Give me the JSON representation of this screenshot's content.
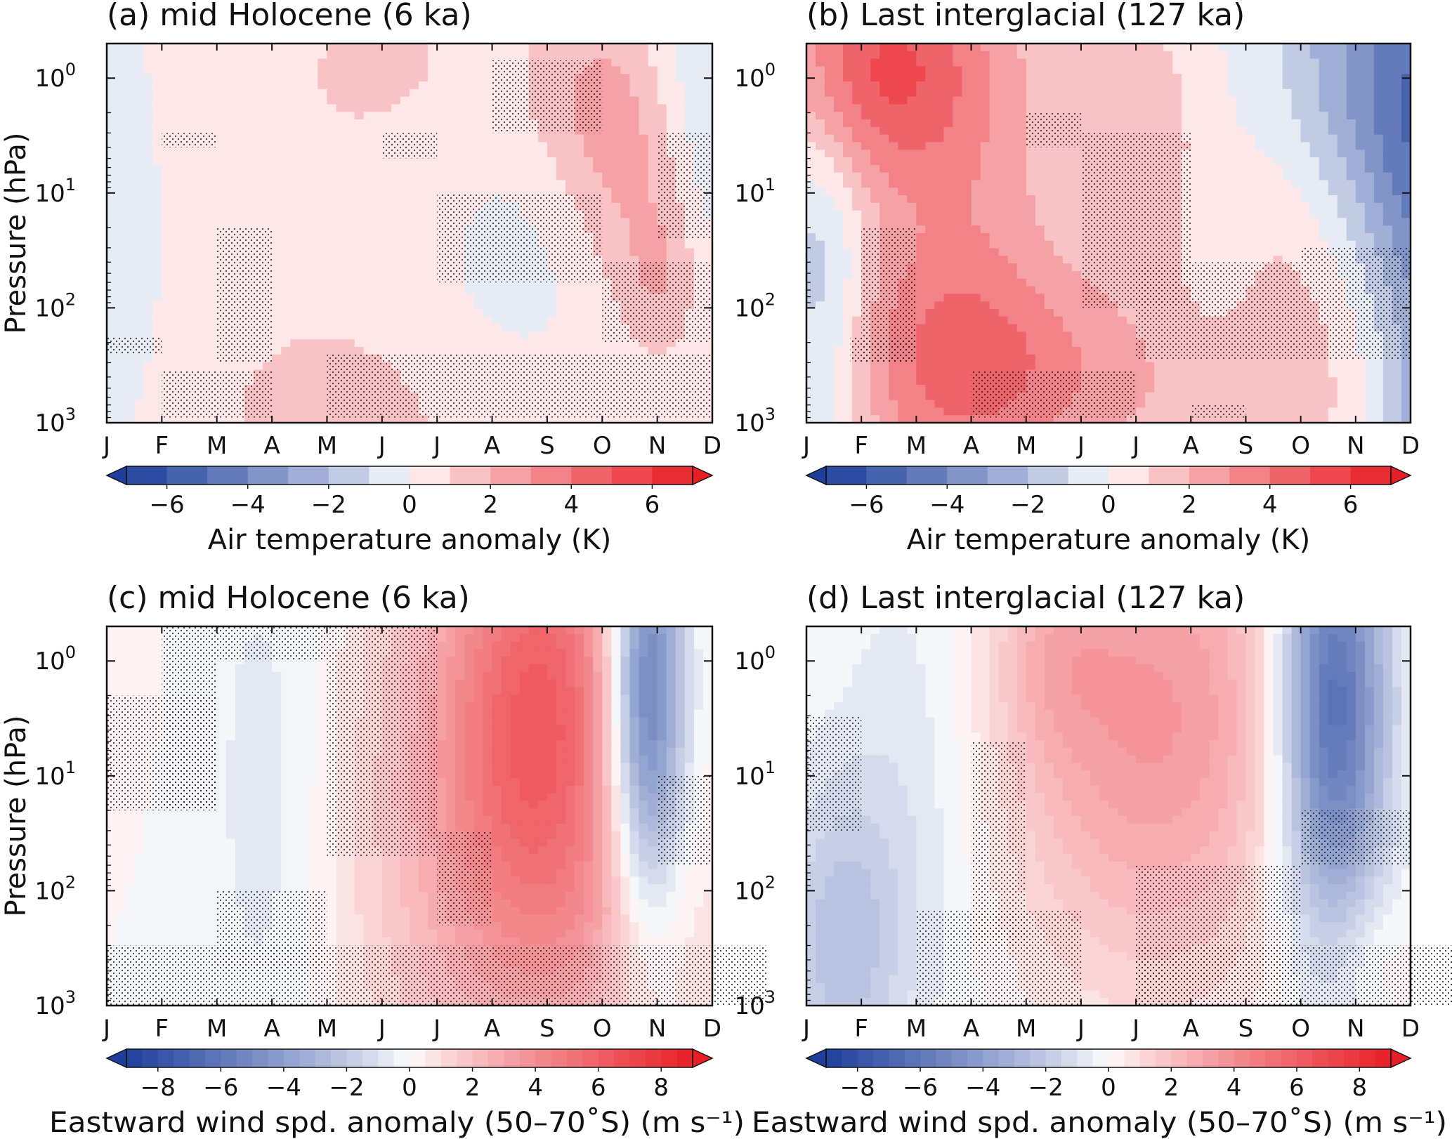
{
  "figure": {
    "colors": {
      "negative_max": "#1e3f9c",
      "zero": "#ffffff",
      "positive_max": "#e81e26"
    }
  },
  "chart_data": [
    {
      "id": "a",
      "type": "heatmap",
      "title": "(a) mid Holocene (6 ka)",
      "ylabel": "Pressure (hPa)",
      "xlabel": "",
      "x": [
        "J",
        "F",
        "M",
        "A",
        "M",
        "J",
        "J",
        "A",
        "S",
        "O",
        "N",
        "D"
      ],
      "yscale": "log",
      "yinvert": true,
      "yticks": [
        {
          "base": "10",
          "exp": "0"
        },
        {
          "base": "10",
          "exp": "1"
        },
        {
          "base": "10",
          "exp": "2"
        },
        {
          "base": "10",
          "exp": "3"
        }
      ],
      "ylim": [
        1000,
        0.5
      ],
      "clim": [
        -7,
        7
      ],
      "colorbar": {
        "label": "Air temperature anomaly (K)",
        "ticks": [
          "−6",
          "−4",
          "−2",
          "0",
          "2",
          "4",
          "6"
        ],
        "values": [
          -6,
          -4,
          -2,
          0,
          2,
          4,
          6
        ],
        "levels": 14
      },
      "blobs": [
        {
          "month": 0.3,
          "p": 30,
          "sm": 0.6,
          "sd": 1.5,
          "amp": -0.9
        },
        {
          "month": 4.5,
          "p": 20,
          "sm": 3.2,
          "sd": 3.0,
          "amp": 0.9
        },
        {
          "month": 5.5,
          "p": 0.7,
          "sm": 1.5,
          "sd": 0.5,
          "amp": 0.4
        },
        {
          "month": 8.9,
          "p": 1.5,
          "sm": 0.9,
          "sd": 0.6,
          "amp": 1.6
        },
        {
          "month": 9.7,
          "p": 10,
          "sm": 0.9,
          "sd": 0.8,
          "amp": 1.7
        },
        {
          "month": 10.1,
          "p": 60,
          "sm": 0.5,
          "sd": 0.5,
          "amp": 1.3
        },
        {
          "month": 7.3,
          "p": 40,
          "sm": 1.4,
          "sd": 1.0,
          "amp": -0.9
        },
        {
          "month": 11.0,
          "p": 2,
          "sm": 0.8,
          "sd": 1.0,
          "amp": -1.5
        },
        {
          "month": 5.0,
          "p": 800,
          "sm": 3.0,
          "sd": 0.5,
          "amp": 0.5
        }
      ],
      "stipple": [
        [
          1,
          2,
          3,
          4
        ],
        [
          5,
          6,
          3,
          5
        ],
        [
          7,
          9,
          0.7,
          3
        ],
        [
          10,
          11,
          3,
          25
        ],
        [
          2,
          3,
          20,
          300
        ],
        [
          0,
          1,
          180,
          250
        ],
        [
          6,
          9,
          10,
          60
        ],
        [
          9,
          11,
          40,
          200
        ],
        [
          1,
          3,
          350,
          900
        ],
        [
          4,
          11,
          250,
          900
        ]
      ]
    },
    {
      "id": "b",
      "type": "heatmap",
      "title": "(b) Last interglacial (127 ka)",
      "ylabel": "",
      "xlabel": "",
      "x": [
        "J",
        "F",
        "M",
        "A",
        "M",
        "J",
        "J",
        "A",
        "S",
        "O",
        "N",
        "D"
      ],
      "yscale": "log",
      "yinvert": true,
      "yticks": [
        {
          "base": "10",
          "exp": "0"
        },
        {
          "base": "10",
          "exp": "1"
        },
        {
          "base": "10",
          "exp": "2"
        },
        {
          "base": "10",
          "exp": "3"
        }
      ],
      "ylim": [
        1000,
        0.5
      ],
      "clim": [
        -7,
        7
      ],
      "colorbar": {
        "label": "Air temperature anomaly (K)",
        "ticks": [
          "−6",
          "−4",
          "−2",
          "0",
          "2",
          "4",
          "6"
        ],
        "values": [
          -6,
          -4,
          -2,
          0,
          2,
          4,
          6
        ],
        "levels": 14
      },
      "blobs": [
        {
          "month": 1.2,
          "p": 0.8,
          "sm": 1.3,
          "sd": 0.7,
          "amp": 4.0
        },
        {
          "month": 2.8,
          "p": 30,
          "sm": 1.5,
          "sd": 2.5,
          "amp": 2.5
        },
        {
          "month": 3.0,
          "p": 250,
          "sm": 2.5,
          "sd": 0.6,
          "amp": 2.0
        },
        {
          "month": 0.3,
          "p": 100,
          "sm": 0.6,
          "sd": 1.2,
          "amp": -2.5
        },
        {
          "month": 6.3,
          "p": 3,
          "sm": 0.9,
          "sd": 1.0,
          "amp": 1.5
        },
        {
          "month": 7.5,
          "p": 30,
          "sm": 0.7,
          "sd": 1.2,
          "amp": -0.9
        },
        {
          "month": 8.6,
          "p": 15,
          "sm": 1.2,
          "sd": 1.5,
          "amp": 2.0
        },
        {
          "month": 10.6,
          "p": 1,
          "sm": 1.8,
          "sd": 1.1,
          "amp": -4.2
        },
        {
          "month": 11.3,
          "p": 40,
          "sm": 0.7,
          "sd": 1.4,
          "amp": -2.5
        },
        {
          "month": 6.0,
          "p": 900,
          "sm": 3.0,
          "sd": 0.6,
          "amp": 1.0
        },
        {
          "month": 11.2,
          "p": 900,
          "sm": 0.7,
          "sd": 0.4,
          "amp": -1.2
        }
      ],
      "stipple": [
        [
          1,
          2,
          20,
          300
        ],
        [
          0.8,
          2,
          180,
          300
        ],
        [
          4,
          5,
          2,
          4
        ],
        [
          5,
          7,
          3,
          100
        ],
        [
          6,
          9,
          40,
          280
        ],
        [
          9,
          11,
          30,
          280
        ],
        [
          3,
          6,
          350,
          900
        ],
        [
          7,
          8,
          700,
          900
        ]
      ]
    },
    {
      "id": "c",
      "type": "heatmap",
      "title": "(c) mid Holocene (6 ka)",
      "ylabel": "Pressure (hPa)",
      "xlabel": "",
      "x": [
        "J",
        "F",
        "M",
        "A",
        "M",
        "J",
        "J",
        "A",
        "S",
        "O",
        "N",
        "D"
      ],
      "yscale": "log",
      "yinvert": true,
      "yticks": [
        {
          "base": "10",
          "exp": "0"
        },
        {
          "base": "10",
          "exp": "1"
        },
        {
          "base": "10",
          "exp": "2"
        },
        {
          "base": "10",
          "exp": "3"
        }
      ],
      "ylim": [
        1000,
        0.5
      ],
      "clim": [
        -9,
        9
      ],
      "colorbar": {
        "label": "Eastward wind spd. anomaly (50–70˚S) (m s⁻¹)",
        "ticks": [
          "−8",
          "−6",
          "−4",
          "−2",
          "0",
          "2",
          "4",
          "6",
          "8"
        ],
        "values": [
          -8,
          -6,
          -4,
          -2,
          0,
          2,
          4,
          6,
          8
        ],
        "levels": 36
      },
      "blobs": [
        {
          "month": 8.0,
          "p": 3,
          "sm": 1.3,
          "sd": 1.6,
          "amp": 5.0
        },
        {
          "month": 6.5,
          "p": 30,
          "sm": 1.8,
          "sd": 2.2,
          "amp": 2.0
        },
        {
          "month": 9.8,
          "p": 2,
          "sm": 0.5,
          "sd": 1.3,
          "amp": -7.0
        },
        {
          "month": 3.0,
          "p": 15,
          "sm": 0.9,
          "sd": 2.0,
          "amp": -0.9
        },
        {
          "month": 0.2,
          "p": 1,
          "sm": 0.4,
          "sd": 0.7,
          "amp": 0.4
        },
        {
          "month": 9.5,
          "p": 300,
          "sm": 1.4,
          "sd": 0.7,
          "amp": 0.8
        }
      ],
      "stipple": [
        [
          1,
          2,
          0.5,
          20
        ],
        [
          2,
          4,
          0.5,
          1
        ],
        [
          0,
          2,
          2,
          20
        ],
        [
          4,
          6,
          0.5,
          50
        ],
        [
          6,
          7,
          30,
          200
        ],
        [
          2,
          4,
          100,
          500
        ],
        [
          0,
          12,
          300,
          1000
        ],
        [
          10,
          11,
          10,
          60
        ]
      ]
    },
    {
      "id": "d",
      "type": "heatmap",
      "title": "(d) Last interglacial (127 ka)",
      "ylabel": "",
      "xlabel": "",
      "x": [
        "J",
        "F",
        "M",
        "A",
        "M",
        "J",
        "J",
        "A",
        "S",
        "O",
        "N",
        "D"
      ],
      "yscale": "log",
      "yinvert": true,
      "yticks": [
        {
          "base": "10",
          "exp": "0"
        },
        {
          "base": "10",
          "exp": "1"
        },
        {
          "base": "10",
          "exp": "2"
        },
        {
          "base": "10",
          "exp": "3"
        }
      ],
      "ylim": [
        1000,
        0.5
      ],
      "clim": [
        -9,
        9
      ],
      "colorbar": {
        "label": "Eastward wind spd. anomaly (50–70˚S) (m s⁻¹)",
        "ticks": [
          "−8",
          "−6",
          "−4",
          "−2",
          "0",
          "2",
          "4",
          "6",
          "8"
        ],
        "values": [
          -8,
          -6,
          -4,
          -2,
          0,
          2,
          4,
          6,
          8
        ],
        "levels": 36
      },
      "blobs": [
        {
          "month": 6.3,
          "p": 3,
          "sm": 2.0,
          "sd": 1.6,
          "amp": 3.6
        },
        {
          "month": 4.5,
          "p": 0.9,
          "sm": 0.7,
          "sd": 0.6,
          "amp": 1.0
        },
        {
          "month": 9.6,
          "p": 2.5,
          "sm": 0.7,
          "sd": 1.4,
          "amp": -7.0
        },
        {
          "month": 0.6,
          "p": 300,
          "sm": 0.8,
          "sd": 1.0,
          "amp": -2.2
        },
        {
          "month": 2.0,
          "p": 10,
          "sm": 1.0,
          "sd": 1.8,
          "amp": -1.0
        },
        {
          "month": 11.9,
          "p": 1,
          "sm": 0.3,
          "sd": 0.8,
          "amp": 1.6
        },
        {
          "month": 10.2,
          "p": 350,
          "sm": 0.5,
          "sd": 0.4,
          "amp": 0.8
        }
      ],
      "stipple": [
        [
          0,
          1,
          3,
          30
        ],
        [
          3,
          4,
          5,
          300
        ],
        [
          6,
          9,
          60,
          1000
        ],
        [
          2,
          5,
          150,
          1000
        ],
        [
          9,
          11,
          20,
          60
        ],
        [
          6,
          12,
          300,
          1000
        ]
      ]
    }
  ]
}
